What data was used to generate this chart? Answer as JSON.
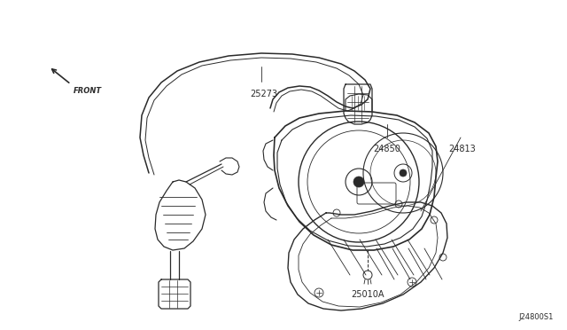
{
  "bg_color": "#ffffff",
  "line_color": "#2a2a2a",
  "fig_width": 6.4,
  "fig_height": 3.72,
  "dpi": 100,
  "labels": {
    "front": "FRONT",
    "part_25273": "25273",
    "part_24850": "24850",
    "part_24813": "24813",
    "part_25010a": "25010A",
    "diagram_id": "J24800S1"
  }
}
